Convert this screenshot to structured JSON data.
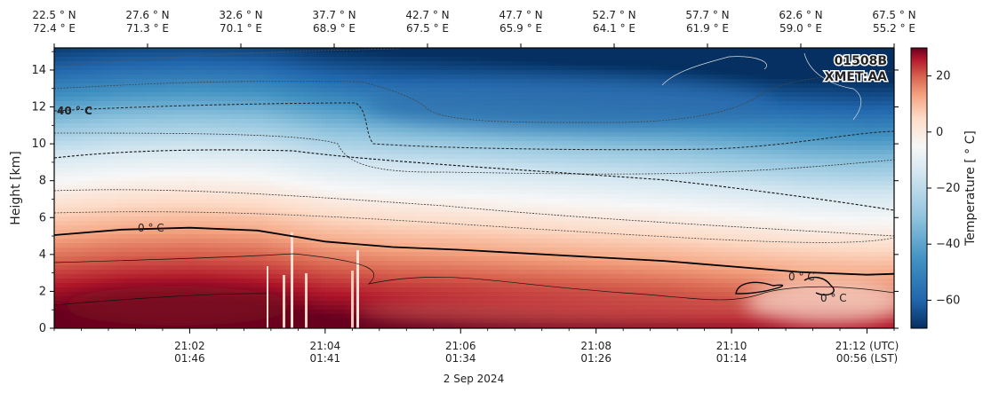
{
  "chart_data": {
    "type": "heatmap",
    "title": "",
    "badge_lines": [
      "01508B",
      "XMET:AA"
    ],
    "ylabel": "Height [km]",
    "ylim": [
      0,
      15.2
    ],
    "yticks": [
      "0",
      "2",
      "4",
      "6",
      "8",
      "10",
      "12",
      "14"
    ],
    "x_range_min": [
      0,
      12.4
    ],
    "x_tick_min": [
      2,
      4,
      6,
      8,
      10,
      12
    ],
    "x_utc": [
      "21:02",
      "21:04",
      "21:06",
      "21:08",
      "21:10",
      "21:12 (UTC)"
    ],
    "x_lst": [
      "01:46",
      "01:41",
      "01:34",
      "01:26",
      "01:14",
      "00:56 (LST)"
    ],
    "date_label": "2 Sep 2024",
    "top_lat": [
      "22.5 ° N",
      "27.6 ° N",
      "32.6 ° N",
      "37.7 ° N",
      "42.7 ° N",
      "47.7 ° N",
      "52.7 ° N",
      "57.7 ° N",
      "62.6 ° N",
      "67.5 ° N"
    ],
    "top_lon": [
      "72.4 ° E",
      "71.3 ° E",
      "70.1 ° E",
      "68.9 ° E",
      "67.5 ° E",
      "65.9 ° E",
      "64.1 ° E",
      "61.9 ° E",
      "59.0 ° E",
      "55.2 ° E"
    ],
    "colorbar": {
      "label": "Temperature [ ° C]",
      "range": [
        -70,
        30
      ],
      "ticks": [
        "20",
        "0",
        "−20",
        "−40",
        "−60"
      ],
      "tick_values": [
        20,
        0,
        -20,
        -40,
        -60
      ],
      "colormap": [
        "#67001f",
        "#b2182b",
        "#d6604d",
        "#f4a582",
        "#fddbc7",
        "#f7f7f7",
        "#d1e5f0",
        "#92c5de",
        "#4393c3",
        "#2166ac",
        "#053061"
      ]
    },
    "contour_labels": [
      "40 ° C",
      "0 ° C",
      "0 ° C",
      "0 ° C"
    ],
    "freezing_level_km": [
      [
        0,
        5.05
      ],
      [
        1,
        5.35
      ],
      [
        2,
        5.45
      ],
      [
        3,
        5.3
      ],
      [
        4,
        4.7
      ],
      [
        5,
        4.4
      ],
      [
        6,
        4.25
      ],
      [
        7,
        4.05
      ],
      [
        8,
        3.85
      ],
      [
        9,
        3.65
      ],
      [
        10,
        3.35
      ],
      [
        11,
        3.05
      ],
      [
        12,
        2.9
      ],
      [
        12.4,
        2.95
      ]
    ]
  }
}
